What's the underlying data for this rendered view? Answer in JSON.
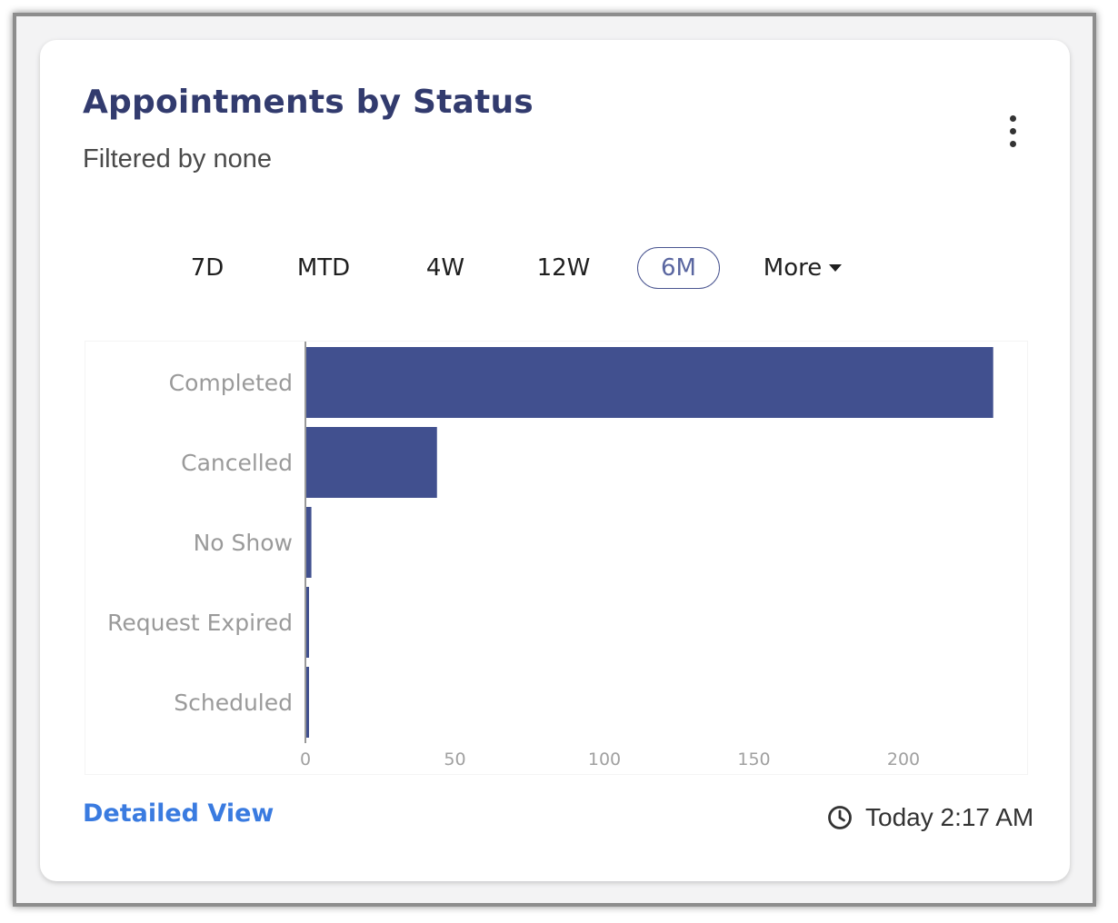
{
  "card": {
    "title": "Appointments by Status",
    "subtitle": "Filtered by none",
    "menu_icon": "more-vert-icon"
  },
  "ranges": [
    {
      "label": "7D",
      "active": false
    },
    {
      "label": "MTD",
      "active": false
    },
    {
      "label": "4W",
      "active": false
    },
    {
      "label": "12W",
      "active": false
    },
    {
      "label": "6M",
      "active": true
    },
    {
      "label": "More",
      "active": false,
      "dropdown": true
    }
  ],
  "chart_data": {
    "type": "bar",
    "orientation": "horizontal",
    "categories": [
      "Completed",
      "Cancelled",
      "No Show",
      "Request Expired",
      "Scheduled"
    ],
    "values": [
      230,
      44,
      2,
      1,
      1
    ],
    "xlim": [
      0,
      240
    ],
    "x_ticks": [
      0,
      50,
      100,
      150,
      200
    ],
    "bar_color": "#41508f",
    "grid": false
  },
  "footer": {
    "detailed_view_label": "Detailed View",
    "updated_icon": "clock-icon",
    "updated_text": "Today 2:17 AM"
  },
  "colors": {
    "title": "#323b6e",
    "accent_link": "#3a7be0",
    "bar": "#41508f"
  }
}
